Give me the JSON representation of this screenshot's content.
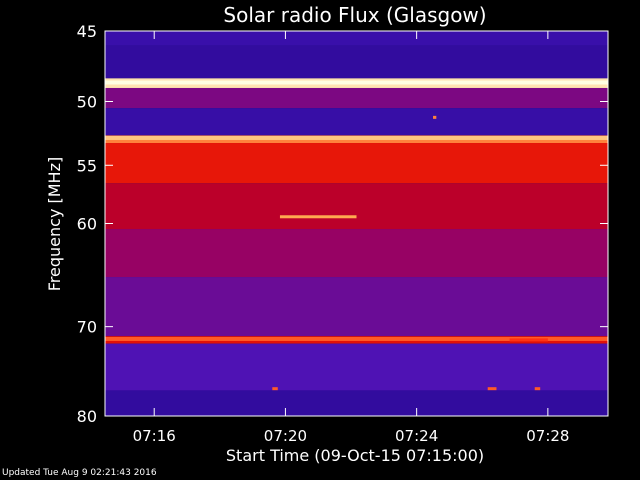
{
  "footer_text": "Updated Tue Aug  9 02:21:43 2016",
  "colors": {
    "background": "#000000",
    "axis": "#ffffff",
    "spectrum_low": "#1a0a6e",
    "spectrum_mid": "#c00000",
    "spectrum_high": "#fff0a0"
  },
  "chart_data": {
    "type": "heatmap",
    "title": "Solar radio Flux (Glasgow)",
    "xlabel": "Start Time (09-Oct-15 07:15:00)",
    "ylabel": "Frequency [MHz]",
    "x_unit": "time",
    "xlim": [
      "07:14:30",
      "07:29:50"
    ],
    "ylim": [
      45,
      80
    ],
    "y_scale": "log",
    "x_ticks": [
      "07:16",
      "07:20",
      "07:24",
      "07:28"
    ],
    "y_ticks": [
      45,
      50,
      55,
      60,
      70,
      80
    ],
    "colormap": "blue-red-yellow-white (intensity)",
    "frequency_bands": [
      {
        "from": 45.0,
        "to": 46.0,
        "level": 0.15
      },
      {
        "from": 46.0,
        "to": 48.3,
        "level": 0.12
      },
      {
        "from": 48.3,
        "to": 49.0,
        "level": 0.95
      },
      {
        "from": 49.0,
        "to": 50.5,
        "level": 0.32
      },
      {
        "from": 50.5,
        "to": 52.6,
        "level": 0.14
      },
      {
        "from": 52.6,
        "to": 53.2,
        "level": 0.8
      },
      {
        "from": 53.2,
        "to": 56.5,
        "level": 0.62
      },
      {
        "from": 56.5,
        "to": 60.5,
        "level": 0.48
      },
      {
        "from": 60.5,
        "to": 65.0,
        "level": 0.38
      },
      {
        "from": 65.0,
        "to": 71.0,
        "level": 0.28
      },
      {
        "from": 71.0,
        "to": 71.8,
        "level": 0.6
      },
      {
        "from": 71.8,
        "to": 77.0,
        "level": 0.22
      },
      {
        "from": 77.0,
        "to": 80.0,
        "level": 0.12
      }
    ],
    "features": [
      {
        "type": "horizontal-line",
        "freq": 48.6,
        "t_start": "07:14:30",
        "t_end": "07:29:50",
        "level": 1.0
      },
      {
        "type": "horizontal-line",
        "freq": 52.8,
        "t_start": "07:14:30",
        "t_end": "07:29:50",
        "level": 0.9
      },
      {
        "type": "horizontal-line",
        "freq": 71.3,
        "t_start": "07:14:30",
        "t_end": "07:29:50",
        "level": 0.75
      },
      {
        "type": "burst",
        "freq": 59.4,
        "t_start": "07:19:50",
        "t_end": "07:22:10",
        "level": 0.85
      },
      {
        "type": "burst",
        "freq": 71.4,
        "t_start": "07:26:50",
        "t_end": "07:28:00",
        "level": 0.7
      },
      {
        "type": "spot",
        "freq": 51.2,
        "t_start": "07:24:30",
        "t_end": "07:24:36",
        "level": 0.8
      },
      {
        "type": "spot",
        "freq": 76.8,
        "t_start": "07:19:36",
        "t_end": "07:19:46",
        "level": 0.75
      },
      {
        "type": "spot",
        "freq": 76.8,
        "t_start": "07:26:10",
        "t_end": "07:26:26",
        "level": 0.75
      },
      {
        "type": "spot",
        "freq": 76.8,
        "t_start": "07:27:36",
        "t_end": "07:27:46",
        "level": 0.75
      }
    ]
  }
}
